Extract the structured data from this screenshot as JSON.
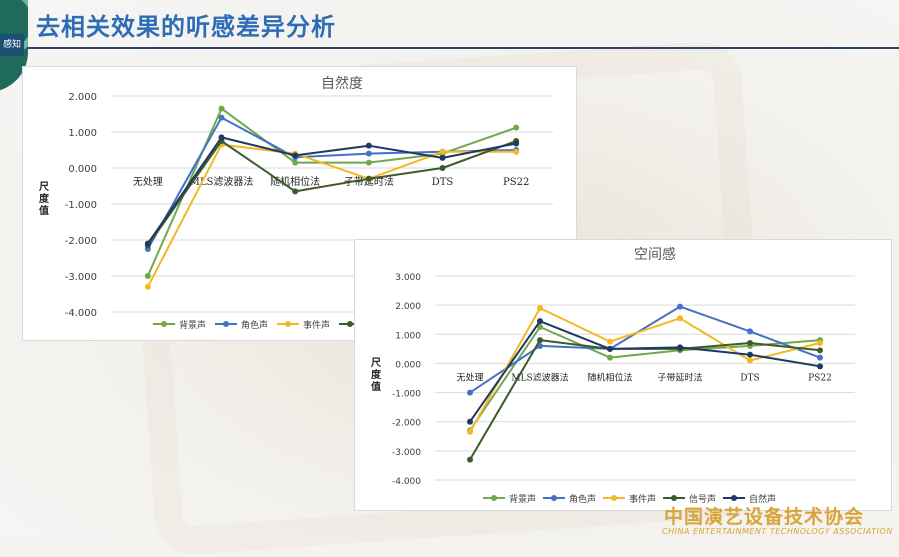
{
  "slide": {
    "title": "去相关效果的听感差异分析",
    "side_tab": "感知"
  },
  "footer": {
    "org_cn": "中国演艺设备技术协会",
    "org_en": "CHINA ENTERTAINMENT TECHNOLOGY ASSOCIATION"
  },
  "colors": {
    "title": "#2d6db6",
    "footer": "#d9a43a"
  },
  "chart_data": [
    {
      "type": "line",
      "title": "自然度",
      "ylabel": "尺度值",
      "ylim": [
        -4,
        2
      ],
      "yticks": [
        2,
        1,
        0,
        -1,
        -2,
        -3,
        -4
      ],
      "ytick_labels": [
        "2.000",
        "1.000",
        "0.000",
        "-1.000",
        "-2.000",
        "-3.000",
        "-4.000"
      ],
      "categories": [
        "无处理",
        "MLS滤波器法",
        "随机相位法",
        "子带延时法",
        "DTS",
        "PS22"
      ],
      "grid": true,
      "legend": "bottom",
      "series": [
        {
          "name": "背景声",
          "color": "#70a84b",
          "values": [
            -3.0,
            1.65,
            0.15,
            0.15,
            0.4,
            1.12
          ]
        },
        {
          "name": "角色声",
          "color": "#4472c4",
          "values": [
            -2.25,
            1.4,
            0.3,
            0.4,
            0.45,
            0.5
          ]
        },
        {
          "name": "事件声",
          "color": "#f2b921",
          "values": [
            -3.3,
            0.65,
            0.4,
            -0.3,
            0.45,
            0.45
          ]
        },
        {
          "name": "",
          "color": "#3e5a2a",
          "values": [
            -2.15,
            0.75,
            -0.65,
            -0.3,
            0.0,
            0.75
          ]
        },
        {
          "name": "",
          "color": "#1f3864",
          "values": [
            -2.1,
            0.85,
            0.35,
            0.62,
            0.28,
            0.68
          ]
        }
      ],
      "legend_entries": [
        "背景声",
        "角色声",
        "事件声"
      ]
    },
    {
      "type": "line",
      "title": "空间感",
      "ylabel": "尺度值",
      "ylim": [
        -4,
        3
      ],
      "yticks": [
        3,
        2,
        1,
        0,
        -1,
        -2,
        -3,
        -4
      ],
      "ytick_labels": [
        "3.000",
        "2.000",
        "1.000",
        "0.000",
        "-1.000",
        "-2.000",
        "-3.000",
        "-4.000"
      ],
      "categories": [
        "无处理",
        "MLS滤波器法",
        "随机相位法",
        "子带延时法",
        "DTS",
        "PS22"
      ],
      "grid": true,
      "legend": "bottom",
      "series": [
        {
          "name": "背景声",
          "color": "#70a84b",
          "values": [
            -2.3,
            1.25,
            0.2,
            0.45,
            0.6,
            0.8
          ]
        },
        {
          "name": "角色声",
          "color": "#4472c4",
          "values": [
            -1.0,
            0.6,
            0.5,
            1.95,
            1.1,
            0.2
          ]
        },
        {
          "name": "事件声",
          "color": "#f2b921",
          "values": [
            -2.35,
            1.9,
            0.75,
            1.55,
            0.1,
            0.7
          ]
        },
        {
          "name": "信号声",
          "color": "#3e5a2a",
          "values": [
            -3.3,
            0.8,
            0.5,
            0.5,
            0.7,
            0.45
          ]
        },
        {
          "name": "自然声",
          "color": "#1f3864",
          "values": [
            -2.0,
            1.45,
            0.5,
            0.55,
            0.3,
            -0.1
          ]
        }
      ],
      "legend_entries": [
        "背景声",
        "角色声",
        "事件声",
        "信号声",
        "自然声"
      ]
    }
  ]
}
